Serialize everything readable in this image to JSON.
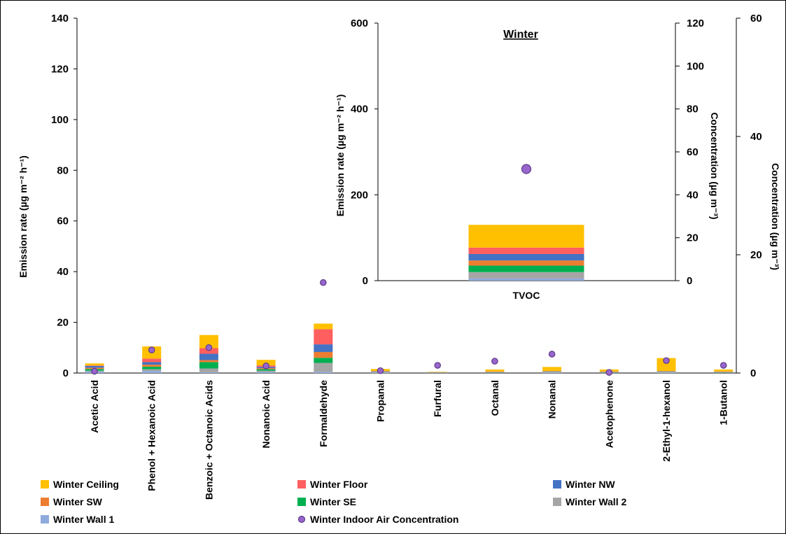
{
  "chart_data": [
    {
      "type": "bar",
      "stacked": true,
      "categories": [
        "Acetic Acid",
        "Phenol + Hexanoic Acid",
        "Benzoic + Octanoic Acids",
        "Nonanoic Acid",
        "Formaldehyde",
        "Propanal",
        "Furfural",
        "Octanal",
        "Nonanal",
        "Acetophenone",
        "2-Ethyl-1-hexanol",
        "1-Butanol"
      ],
      "ylabel": "Emission rate (µg m⁻² h⁻¹)",
      "ylim": [
        0,
        140
      ],
      "yticks": [
        0,
        20,
        40,
        60,
        80,
        100,
        120,
        140
      ],
      "y2label": "Concentration (µg m⁻³)",
      "y2lim": [
        0,
        60
      ],
      "y2ticks": [
        0,
        20,
        40,
        60
      ],
      "series": [
        {
          "name": "Winter Wall 1",
          "color": "#8faadc",
          "values": [
            0.6,
            0.8,
            0.3,
            0.4,
            0.5,
            0.2,
            0.1,
            0.1,
            0.2,
            0.1,
            0.2,
            0.1
          ]
        },
        {
          "name": "Winter Wall 2",
          "color": "#a5a5a5",
          "values": [
            0.3,
            0.7,
            1.5,
            0.5,
            3.5,
            0.2,
            0.05,
            0.1,
            0.2,
            0.1,
            0.2,
            0.1
          ]
        },
        {
          "name": "Winter SE",
          "color": "#00b050",
          "values": [
            0.7,
            1.0,
            2.5,
            0.6,
            2.0,
            0.1,
            0.05,
            0.1,
            0.1,
            0.1,
            0.1,
            0.1
          ]
        },
        {
          "name": "Winter SW",
          "color": "#ed7d31",
          "values": [
            0.5,
            0.8,
            0.8,
            0.4,
            2.3,
            0.1,
            0.05,
            0.1,
            0.1,
            0.1,
            0.1,
            0.1
          ]
        },
        {
          "name": "Winter NW",
          "color": "#4472c4",
          "values": [
            0.7,
            1.0,
            2.5,
            0.5,
            3.0,
            0.1,
            0.05,
            0.1,
            0.1,
            0.1,
            0.1,
            0.1
          ]
        },
        {
          "name": "Winter Floor",
          "color": "#ff5f5f",
          "values": [
            0.2,
            1.4,
            2.2,
            0.6,
            6.0,
            0.1,
            0.05,
            0.1,
            0.1,
            0.1,
            0.1,
            0.1
          ]
        },
        {
          "name": "Winter Ceiling",
          "color": "#ffc000",
          "values": [
            0.8,
            4.8,
            5.2,
            2.2,
            2.2,
            0.8,
            0.15,
            0.8,
            1.6,
            0.8,
            5.1,
            0.8
          ]
        }
      ],
      "points": {
        "name": "Winter Indoor Air Concentration",
        "color": "#9966cc",
        "axis": "y2",
        "values": [
          0.3,
          3.9,
          4.3,
          1.2,
          15.3,
          0.4,
          1.3,
          2.0,
          3.2,
          0.1,
          2.1,
          1.3
        ]
      }
    },
    {
      "type": "bar",
      "stacked": true,
      "title": "Winter",
      "categories": [
        "TVOC"
      ],
      "ylabel": "Emission rate (µg m⁻² h⁻¹)",
      "ylim": [
        0,
        600
      ],
      "yticks": [
        0,
        200,
        400,
        600
      ],
      "y2label": "Concentration (µg m⁻³)",
      "y2lim": [
        0,
        120
      ],
      "y2ticks": [
        0,
        20,
        40,
        60,
        80,
        100,
        120
      ],
      "series": [
        {
          "name": "Winter Wall 1",
          "color": "#8faadc",
          "values": [
            5
          ]
        },
        {
          "name": "Winter Wall 2",
          "color": "#a5a5a5",
          "values": [
            15
          ]
        },
        {
          "name": "Winter SE",
          "color": "#00b050",
          "values": [
            15
          ]
        },
        {
          "name": "Winter SW",
          "color": "#ed7d31",
          "values": [
            12
          ]
        },
        {
          "name": "Winter NW",
          "color": "#4472c4",
          "values": [
            15
          ]
        },
        {
          "name": "Winter Floor",
          "color": "#ff5f5f",
          "values": [
            15
          ]
        },
        {
          "name": "Winter Ceiling",
          "color": "#ffc000",
          "values": [
            53
          ]
        }
      ],
      "points": {
        "name": "Winter Indoor Air Concentration",
        "color": "#9966cc",
        "axis": "y2",
        "values": [
          52
        ]
      }
    }
  ],
  "legend": [
    {
      "label": "Winter  Ceiling",
      "color": "#ffc000",
      "shape": "square"
    },
    {
      "label": "Winter  Floor",
      "color": "#ff5f5f",
      "shape": "square"
    },
    {
      "label": "Winter  NW",
      "color": "#4472c4",
      "shape": "square"
    },
    {
      "label": "Winter  SW",
      "color": "#ed7d31",
      "shape": "square"
    },
    {
      "label": "Winter  SE",
      "color": "#00b050",
      "shape": "square"
    },
    {
      "label": "Winter  Wall 2",
      "color": "#a5a5a5",
      "shape": "square"
    },
    {
      "label": "Winter  Wall 1",
      "color": "#8faadc",
      "shape": "square"
    },
    {
      "label": "Winter  Indoor Air Concentration",
      "color": "#9966cc",
      "shape": "circle"
    }
  ]
}
